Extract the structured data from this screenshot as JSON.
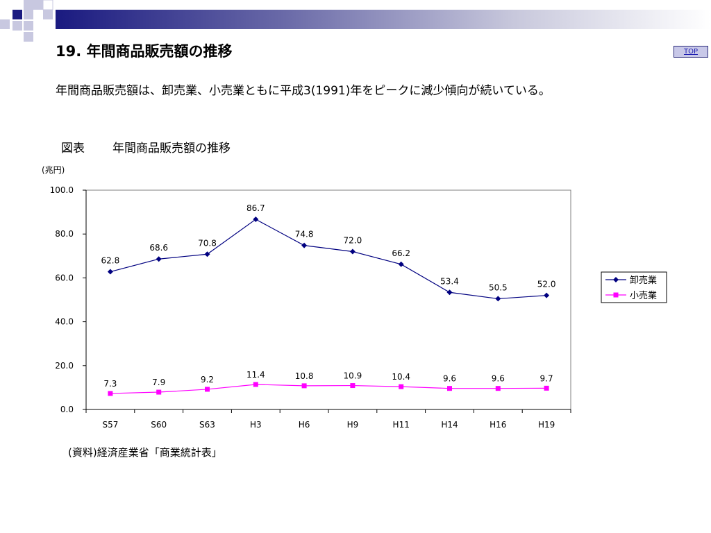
{
  "header": {
    "title": "19. 年間商品販売額の推移",
    "top_link": "TOP"
  },
  "body": {
    "intro": "年間商品販売額は、卸売業、小売業ともに平成3(1991)年をピークに減少傾向が続いている。",
    "figure_label": "図表",
    "figure_title": "年間商品販売額の推移",
    "unit": "(兆円)",
    "source": "(資料)経済産業省「商業統計表」"
  },
  "colors": {
    "wholesale": "#000080",
    "retail": "#ff00ff",
    "header_bar_dark": "#1a1a80"
  },
  "chart_data": {
    "type": "line",
    "categories": [
      "S57",
      "S60",
      "S63",
      "H3",
      "H6",
      "H9",
      "H11",
      "H14",
      "H16",
      "H19"
    ],
    "series": [
      {
        "name": "卸売業",
        "values": [
          62.8,
          68.6,
          70.8,
          86.7,
          74.8,
          72.0,
          66.2,
          53.4,
          50.5,
          52.0
        ],
        "labels": [
          "62.8",
          "68.6",
          "70.8",
          "86.7",
          "74.8",
          "72.0",
          "66.2",
          "53.4",
          "50.5",
          "52.0"
        ],
        "color": "#000080",
        "marker": "diamond"
      },
      {
        "name": "小売業",
        "values": [
          7.3,
          7.9,
          9.2,
          11.4,
          10.8,
          10.9,
          10.4,
          9.6,
          9.6,
          9.7
        ],
        "labels": [
          "7.3",
          "7.9",
          "9.2",
          "11.4",
          "10.8",
          "10.9",
          "10.4",
          "9.6",
          "9.6",
          "9.7"
        ],
        "color": "#ff00ff",
        "marker": "square"
      }
    ],
    "yticks": [
      "0.0",
      "20.0",
      "40.0",
      "60.0",
      "80.0",
      "100.0"
    ],
    "ylim": [
      0,
      100
    ],
    "grid": false,
    "legend_position": "right"
  }
}
